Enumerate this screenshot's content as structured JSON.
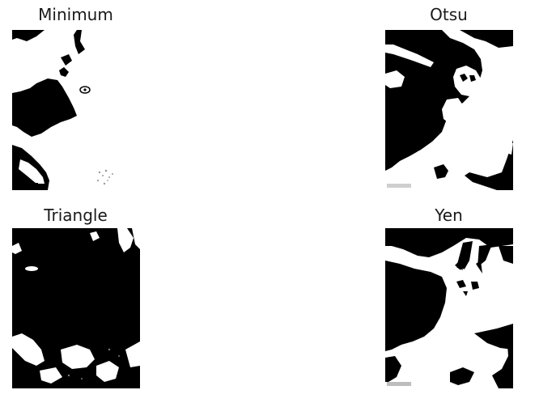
{
  "figure": {
    "panels": [
      {
        "title": "Minimum"
      },
      {
        "title": "Otsu"
      },
      {
        "title": "Triangle"
      },
      {
        "title": "Yen"
      }
    ]
  },
  "colors": {
    "foreground": "#000000",
    "background": "#ffffff",
    "title_text": "#1a1a1a"
  }
}
